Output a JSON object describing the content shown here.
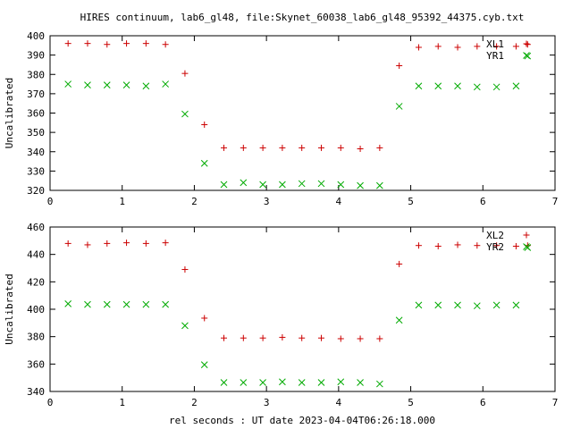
{
  "figure": {
    "title": "HIRES continuum, lab6_gl48, file:Skynet_60038_lab6_gl48_95392_44375.cyb.txt",
    "xlabel": "rel seconds : UT date 2023-04-04T06:26:18.000"
  },
  "chart_data": [
    {
      "type": "scatter",
      "title": "HIRES continuum, lab6_gl48, file:Skynet_60038_lab6_gl48_95392_44375.cyb.txt",
      "xlabel": "",
      "ylabel": "Uncalibrated",
      "xlim": [
        0,
        7
      ],
      "ylim": [
        320,
        400
      ],
      "xticks": [
        0,
        1,
        2,
        3,
        4,
        5,
        6,
        7
      ],
      "yticks": [
        320,
        330,
        340,
        350,
        360,
        370,
        380,
        390,
        400
      ],
      "legend_position": "top-right",
      "x": [
        0.25,
        0.52,
        0.79,
        1.06,
        1.33,
        1.6,
        1.87,
        2.14,
        2.41,
        2.68,
        2.95,
        3.22,
        3.49,
        3.76,
        4.03,
        4.3,
        4.57,
        4.84,
        5.11,
        5.38,
        5.65,
        5.92,
        6.19,
        6.46,
        6.62
      ],
      "series": [
        {
          "name": "XL1",
          "color": "#cc0000",
          "marker": "plus",
          "values": [
            396,
            396,
            395.5,
            396,
            396,
            395.5,
            380.5,
            354,
            342,
            342,
            342,
            342,
            342,
            342,
            342,
            341.5,
            342,
            384.5,
            394,
            394.5,
            394,
            394.5,
            394.5,
            394.5,
            395.5
          ]
        },
        {
          "name": "YR1",
          "color": "#00aa00",
          "marker": "cross",
          "values": [
            375,
            374.5,
            374.5,
            374.5,
            374,
            375,
            359.5,
            334,
            323,
            324,
            323,
            323,
            323.5,
            323.5,
            323,
            322.5,
            322.5,
            363.5,
            374,
            374,
            374,
            373.5,
            373.5,
            374,
            389.5
          ]
        }
      ]
    },
    {
      "type": "scatter",
      "xlabel": "rel seconds : UT date 2023-04-04T06:26:18.000",
      "ylabel": "Uncalibrated",
      "xlim": [
        0,
        7
      ],
      "ylim": [
        340,
        460
      ],
      "xticks": [
        0,
        1,
        2,
        3,
        4,
        5,
        6,
        7
      ],
      "yticks": [
        340,
        360,
        380,
        400,
        420,
        440,
        460
      ],
      "legend_position": "top-right",
      "x": [
        0.25,
        0.52,
        0.79,
        1.06,
        1.33,
        1.6,
        1.87,
        2.14,
        2.41,
        2.68,
        2.95,
        3.22,
        3.49,
        3.76,
        4.03,
        4.3,
        4.57,
        4.84,
        5.11,
        5.38,
        5.65,
        5.92,
        6.19,
        6.46,
        6.62
      ],
      "series": [
        {
          "name": "XL2",
          "color": "#cc0000",
          "marker": "plus",
          "values": [
            448,
            447,
            448,
            448.5,
            448,
            448.5,
            429,
            393.5,
            379,
            379,
            379,
            379.5,
            379,
            379,
            378.5,
            378.5,
            378.5,
            433,
            446.5,
            446,
            447,
            446.5,
            446.5,
            446,
            446.5
          ]
        },
        {
          "name": "YR2",
          "color": "#00aa00",
          "marker": "cross",
          "values": [
            404,
            403.5,
            403.5,
            403.5,
            403.5,
            403.5,
            388,
            359.5,
            346.5,
            346.5,
            346.5,
            347,
            346.5,
            346.5,
            347,
            346.5,
            345.5,
            392,
            403,
            403,
            403,
            402.5,
            403,
            403,
            445
          ]
        }
      ]
    }
  ]
}
